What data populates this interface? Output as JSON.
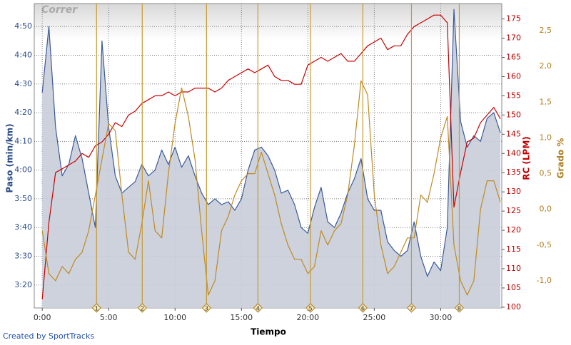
{
  "chart_data": {
    "type": "line",
    "title": "Correr",
    "credit": "Created by SportTracks",
    "xlabel": "Tiempo",
    "ylabel": "Paso (min/km)",
    "y2label": "RC (LPM)",
    "y3label": "Grado %",
    "grid": true,
    "x": [
      0,
      0.5,
      1,
      1.5,
      2,
      2.5,
      3,
      3.5,
      4,
      4.5,
      5,
      5.5,
      6,
      6.5,
      7,
      7.5,
      8,
      8.5,
      9,
      9.5,
      10,
      10.5,
      11,
      11.5,
      12,
      12.5,
      13,
      13.5,
      14,
      14.5,
      15,
      15.5,
      16,
      16.5,
      17,
      17.5,
      18,
      18.5,
      19,
      19.5,
      20,
      20.5,
      21,
      21.5,
      22,
      22.5,
      23,
      23.5,
      24,
      24.5,
      25,
      25.5,
      26,
      26.5,
      27,
      27.5,
      28,
      28.5,
      29,
      29.5,
      30,
      30.5,
      31,
      31.5,
      32,
      32.5,
      33,
      33.5,
      34,
      34.5
    ],
    "xlim": [
      -0.6,
      34.6
    ],
    "xticks": [
      {
        "value": 0,
        "label": "0:00"
      },
      {
        "value": 5,
        "label": "5:00"
      },
      {
        "value": 10,
        "label": "10:00"
      },
      {
        "value": 15,
        "label": "15:00"
      },
      {
        "value": 20,
        "label": "20:00"
      },
      {
        "value": 25,
        "label": "25:00"
      },
      {
        "value": 30,
        "label": "30:00"
      }
    ],
    "ylim": [
      192,
      298
    ],
    "yticks": [
      {
        "value": 200,
        "label": "3:20"
      },
      {
        "value": 210,
        "label": "3:30"
      },
      {
        "value": 220,
        "label": "3:40"
      },
      {
        "value": 230,
        "label": "3:50"
      },
      {
        "value": 240,
        "label": "4:00"
      },
      {
        "value": 250,
        "label": "4:10"
      },
      {
        "value": 260,
        "label": "4:20"
      },
      {
        "value": 270,
        "label": "4:30"
      },
      {
        "value": 280,
        "label": "4:40"
      },
      {
        "value": 290,
        "label": "4:50"
      }
    ],
    "y2lim": [
      99.8,
      179
    ],
    "y2ticks": [
      100,
      105,
      110,
      115,
      120,
      125,
      130,
      135,
      140,
      145,
      150,
      155,
      160,
      165,
      170,
      175
    ],
    "y3lim": [
      -1.38,
      2.88
    ],
    "y3ticks": [
      {
        "value": -1,
        "label": "-1,0"
      },
      {
        "value": -0.5,
        "label": "-0,5"
      },
      {
        "value": 0,
        "label": "0,0"
      },
      {
        "value": 0.5,
        "label": "0,5"
      },
      {
        "value": 1,
        "label": "1,0"
      },
      {
        "value": 1.5,
        "label": "1,5"
      },
      {
        "value": 2,
        "label": "2,0"
      },
      {
        "value": 2.5,
        "label": "2,5"
      }
    ],
    "laps": [
      {
        "label": "1",
        "x": 4.09
      },
      {
        "label": "2",
        "x": 7.53
      },
      {
        "label": "3",
        "x": 12.37
      },
      {
        "label": "4",
        "x": 16.24
      },
      {
        "label": "5",
        "x": 20.2
      },
      {
        "label": "6",
        "x": 24.14
      },
      {
        "label": "7",
        "x": 27.8
      },
      {
        "label": "8",
        "x": 31.4
      }
    ],
    "series": [
      {
        "name": "Paso",
        "axis": "y",
        "color": "#3a5a9a",
        "fill": "#c8cdd9",
        "values": [
          267,
          290,
          255,
          238,
          242,
          252,
          244,
          232,
          220,
          285,
          255,
          238,
          232,
          234,
          236,
          242,
          238,
          240,
          247,
          242,
          248,
          241,
          245,
          238,
          232,
          228,
          230,
          228,
          229,
          226,
          230,
          240,
          247,
          248,
          245,
          240,
          232,
          233,
          228,
          220,
          218,
          227,
          234,
          222,
          220,
          225,
          232,
          237,
          244,
          230,
          226,
          226,
          215,
          212,
          210,
          212,
          222,
          210,
          203,
          208,
          205,
          220,
          296,
          257,
          248,
          252,
          250,
          258,
          260,
          253
        ]
      },
      {
        "name": "RC",
        "axis": "y2",
        "color": "#cc0000",
        "values": [
          102,
          122,
          135,
          136,
          137,
          138,
          140,
          139,
          142,
          143,
          145,
          148,
          147,
          150,
          151,
          153,
          154,
          155,
          155,
          156,
          155,
          156,
          156,
          157,
          157,
          157,
          156,
          157,
          159,
          160,
          161,
          162,
          161,
          162,
          163,
          160,
          159,
          159,
          158,
          158,
          163,
          164,
          165,
          164,
          165,
          166,
          164,
          164,
          166,
          168,
          169,
          170,
          167,
          168,
          168,
          171,
          173,
          174,
          175,
          176,
          176,
          174,
          126,
          135,
          143,
          144,
          148,
          150,
          152,
          149
        ]
      },
      {
        "name": "Grado",
        "axis": "y3",
        "color": "#c08a20",
        "values": [
          -0.3,
          -0.9,
          -1.0,
          -0.8,
          -0.9,
          -0.7,
          -0.6,
          -0.3,
          0.2,
          0.7,
          1.2,
          1.1,
          0.2,
          -0.6,
          -0.7,
          -0.2,
          0.4,
          -0.3,
          -0.4,
          0.5,
          1.2,
          1.7,
          1.3,
          0.7,
          -0.3,
          -1.2,
          -1.0,
          -0.3,
          -0.1,
          0.2,
          0.4,
          0.5,
          0.5,
          0.8,
          0.5,
          0.2,
          -0.2,
          -0.5,
          -0.7,
          -0.7,
          -0.9,
          -0.8,
          -0.3,
          -0.5,
          -0.3,
          -0.2,
          0.2,
          0.9,
          1.8,
          1.6,
          0.2,
          -0.5,
          -0.9,
          -0.8,
          -0.6,
          -0.4,
          -0.4,
          0.2,
          0.1,
          0.5,
          1.0,
          1.3,
          -0.5,
          -1.0,
          -1.2,
          -1.0,
          0.0,
          0.4,
          0.4,
          0.1
        ]
      }
    ]
  }
}
